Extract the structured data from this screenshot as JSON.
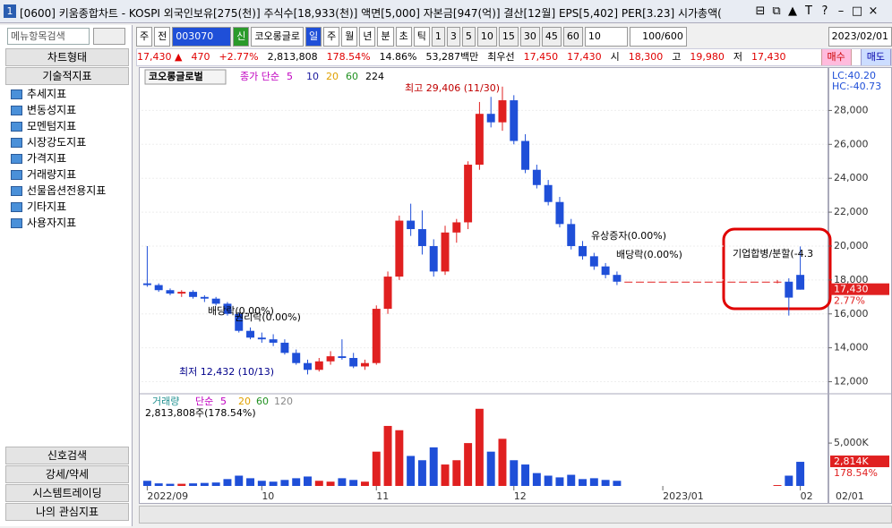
{
  "window": {
    "icon": "1",
    "title": "[0600] 키움종합차트 - KOSPI 외국인보유[275(천)] 주식수[18,933(천)] 액면[5,000] 자본금[947(억)] 결산[12월] EPS[5,402] PER[3.23] 시가총액(",
    "buttons": [
      "⊟",
      "⧉",
      "▲",
      "T",
      "?",
      "–",
      "□",
      "×"
    ]
  },
  "sidebar": {
    "search": "메뉴항목검색",
    "tabs_top": [
      "차트형태",
      "기술적지표"
    ],
    "folders": [
      "추세지표",
      "변동성지표",
      "모멘텀지표",
      "시장강도지표",
      "가격지표",
      "거래량지표",
      "선물옵션전용지표",
      "기타지표",
      "사용자지표"
    ],
    "tabs_bottom": [
      "신호검색",
      "강세/약세",
      "시스템트레이딩",
      "나의 관심지표"
    ]
  },
  "toolbar": {
    "period": "주",
    "prev": "전",
    "code": "003070",
    "badge": "신",
    "name": "코오롱글로",
    "units": [
      "일",
      "주",
      "월",
      "년",
      "분",
      "초",
      "틱"
    ],
    "intervals": [
      "1",
      "3",
      "5",
      "10",
      "15",
      "30",
      "45",
      "60"
    ],
    "interval_value": "10",
    "count": "100/600",
    "date": "2023/02/01"
  },
  "quote": {
    "price": "17,430 ▲",
    "change": "470",
    "rate": "+2.77%",
    "volume": "2,813,808",
    "vol_rate": "178.54%",
    "turnover": "14.86%",
    "amount": "53,287백만",
    "best_label": "최우선",
    "ask": "17,450",
    "bid": "17,430",
    "open_label": "시",
    "open": "18,300",
    "high_label": "고",
    "high": "19,980",
    "low_label": "저",
    "low": "17,430",
    "buy": "매수",
    "sell": "매도"
  },
  "chart_data": [
    {
      "type": "candlestick",
      "title": "코오롱글로벌",
      "ma_label": "종가 단순",
      "moving_averages": [
        {
          "name": "5",
          "color": "#c000c0"
        },
        {
          "name": "10",
          "color": "#1a1aa0"
        },
        {
          "name": "20",
          "color": "#e0a000"
        },
        {
          "name": "60",
          "color": "#209020"
        },
        {
          "name": "224",
          "color": "#000000"
        }
      ],
      "up_color": "#e02020",
      "down_color": "#1f4fd8",
      "open": [
        17800,
        17700,
        17400,
        17200,
        17300,
        17000,
        16900,
        16600,
        16000,
        15000,
        14600,
        14500,
        14300,
        13700,
        13100,
        12700,
        13200,
        13500,
        13400,
        12900,
        13100,
        16300,
        18200,
        21500,
        21000,
        20000,
        18500,
        20800,
        21400,
        24800,
        27800,
        27300,
        28600,
        26200,
        24500,
        23600,
        22600,
        21300,
        20000,
        19400,
        18800,
        18300,
        17900,
        17900,
        17900,
        17900,
        17900,
        17900,
        17900,
        17900,
        17900,
        17900,
        17900,
        17900,
        17900,
        17900,
        17900,
        18300
      ],
      "high": [
        20000,
        17800,
        17500,
        17400,
        17400,
        17100,
        17000,
        16700,
        16100,
        15200,
        14900,
        14800,
        14500,
        13900,
        13300,
        13400,
        13800,
        14500,
        13700,
        13300,
        16500,
        18500,
        21800,
        22500,
        22100,
        20400,
        21200,
        21600,
        25000,
        28500,
        28800,
        29406,
        28900,
        26600,
        24800,
        23900,
        22900,
        21600,
        20300,
        19600,
        19000,
        18500,
        17900,
        17900,
        17900,
        17900,
        17900,
        17900,
        17900,
        17900,
        17900,
        17900,
        17900,
        17900,
        17900,
        18000,
        18100,
        19980
      ],
      "low": [
        17600,
        17300,
        17100,
        17000,
        16900,
        16700,
        16500,
        15900,
        14900,
        14500,
        14300,
        14100,
        13600,
        13000,
        12432,
        12600,
        13000,
        13300,
        12800,
        12700,
        13000,
        16000,
        18000,
        20600,
        19500,
        18200,
        18300,
        20200,
        21000,
        24500,
        27000,
        26800,
        26000,
        24300,
        23400,
        22400,
        21100,
        19800,
        19200,
        18600,
        18100,
        17700,
        17900,
        17900,
        17900,
        17900,
        17900,
        17900,
        17900,
        17900,
        17900,
        17900,
        17900,
        17900,
        17900,
        17800,
        15900,
        17430
      ],
      "close": [
        17700,
        17400,
        17200,
        17300,
        17000,
        16900,
        16600,
        16000,
        15000,
        14600,
        14500,
        14300,
        13700,
        13100,
        12700,
        13200,
        13500,
        13400,
        12900,
        13100,
        16300,
        18200,
        21500,
        21000,
        20000,
        18500,
        20800,
        21400,
        24800,
        27800,
        27300,
        28600,
        26200,
        24500,
        23600,
        22600,
        21300,
        20000,
        19400,
        18800,
        18300,
        17900,
        17900,
        17900,
        17900,
        17900,
        17900,
        17900,
        17900,
        17900,
        17900,
        17900,
        17900,
        17900,
        17900,
        17900,
        16960,
        17430
      ],
      "ylim": [
        11500,
        29500
      ],
      "yticks": [
        {
          "value": 12000,
          "label": "12,000"
        },
        {
          "value": 14000,
          "label": "14,000"
        },
        {
          "value": 16000,
          "label": "16,000"
        },
        {
          "value": 18000,
          "label": "18,000"
        },
        {
          "value": 20000,
          "label": "20,000"
        },
        {
          "value": 22000,
          "label": "22,000"
        },
        {
          "value": 24000,
          "label": "24,000"
        },
        {
          "value": 26000,
          "label": "26,000"
        },
        {
          "value": 28000,
          "label": "28,000"
        }
      ],
      "last_label": "17,430",
      "last_rate": "2.77%",
      "lc": "LC:40.20",
      "hc": "HC:-40.73",
      "annotations": [
        "최고 29,406 (11/30)",
        "최저 12,432 (10/13)",
        "배당락(0.00%)",
        "권리락(0.00%)",
        "유상증자(0.00%)",
        "배당락(0.00%)",
        "기업합병/분할(-4.3"
      ]
    },
    {
      "type": "bar",
      "title": "거래량",
      "ma_label": "단순",
      "moving_averages": [
        {
          "name": "5",
          "color": "#c000c0"
        },
        {
          "name": "20",
          "color": "#e0a000"
        },
        {
          "name": "60",
          "color": "#209020"
        },
        {
          "name": "120",
          "color": "#888888"
        }
      ],
      "summary": "2,813,808주(178.54%)",
      "categories": [
        "2022/09",
        null,
        null,
        null,
        null,
        null,
        null,
        null,
        null,
        null,
        "10",
        null,
        null,
        null,
        null,
        null,
        null,
        null,
        null,
        null,
        "11",
        null,
        null,
        null,
        null,
        null,
        null,
        null,
        null,
        null,
        null,
        null,
        "12",
        null,
        null,
        null,
        null,
        null,
        null,
        null,
        null,
        null,
        null,
        null,
        null,
        "2023/01",
        null,
        null,
        null,
        null,
        null,
        null,
        null,
        null,
        null,
        null,
        null,
        "02"
      ],
      "values": [
        600,
        300,
        250,
        250,
        300,
        350,
        400,
        800,
        1200,
        900,
        600,
        500,
        700,
        900,
        1100,
        600,
        500,
        900,
        700,
        500,
        4000,
        7000,
        6500,
        3500,
        3000,
        4500,
        2500,
        3000,
        5000,
        9000,
        4000,
        5500,
        3000,
        2500,
        1500,
        1200,
        1000,
        1300,
        800,
        900,
        700,
        600,
        0,
        0,
        0,
        0,
        0,
        0,
        0,
        0,
        0,
        0,
        0,
        0,
        0,
        100,
        1200,
        2814
      ],
      "ylim": [
        0,
        9500
      ],
      "yticks": [
        {
          "value": 5000,
          "label": "5,000K"
        }
      ],
      "last_label": "2,814K",
      "last_rate": "178.54%",
      "last_date": "02/01"
    }
  ]
}
